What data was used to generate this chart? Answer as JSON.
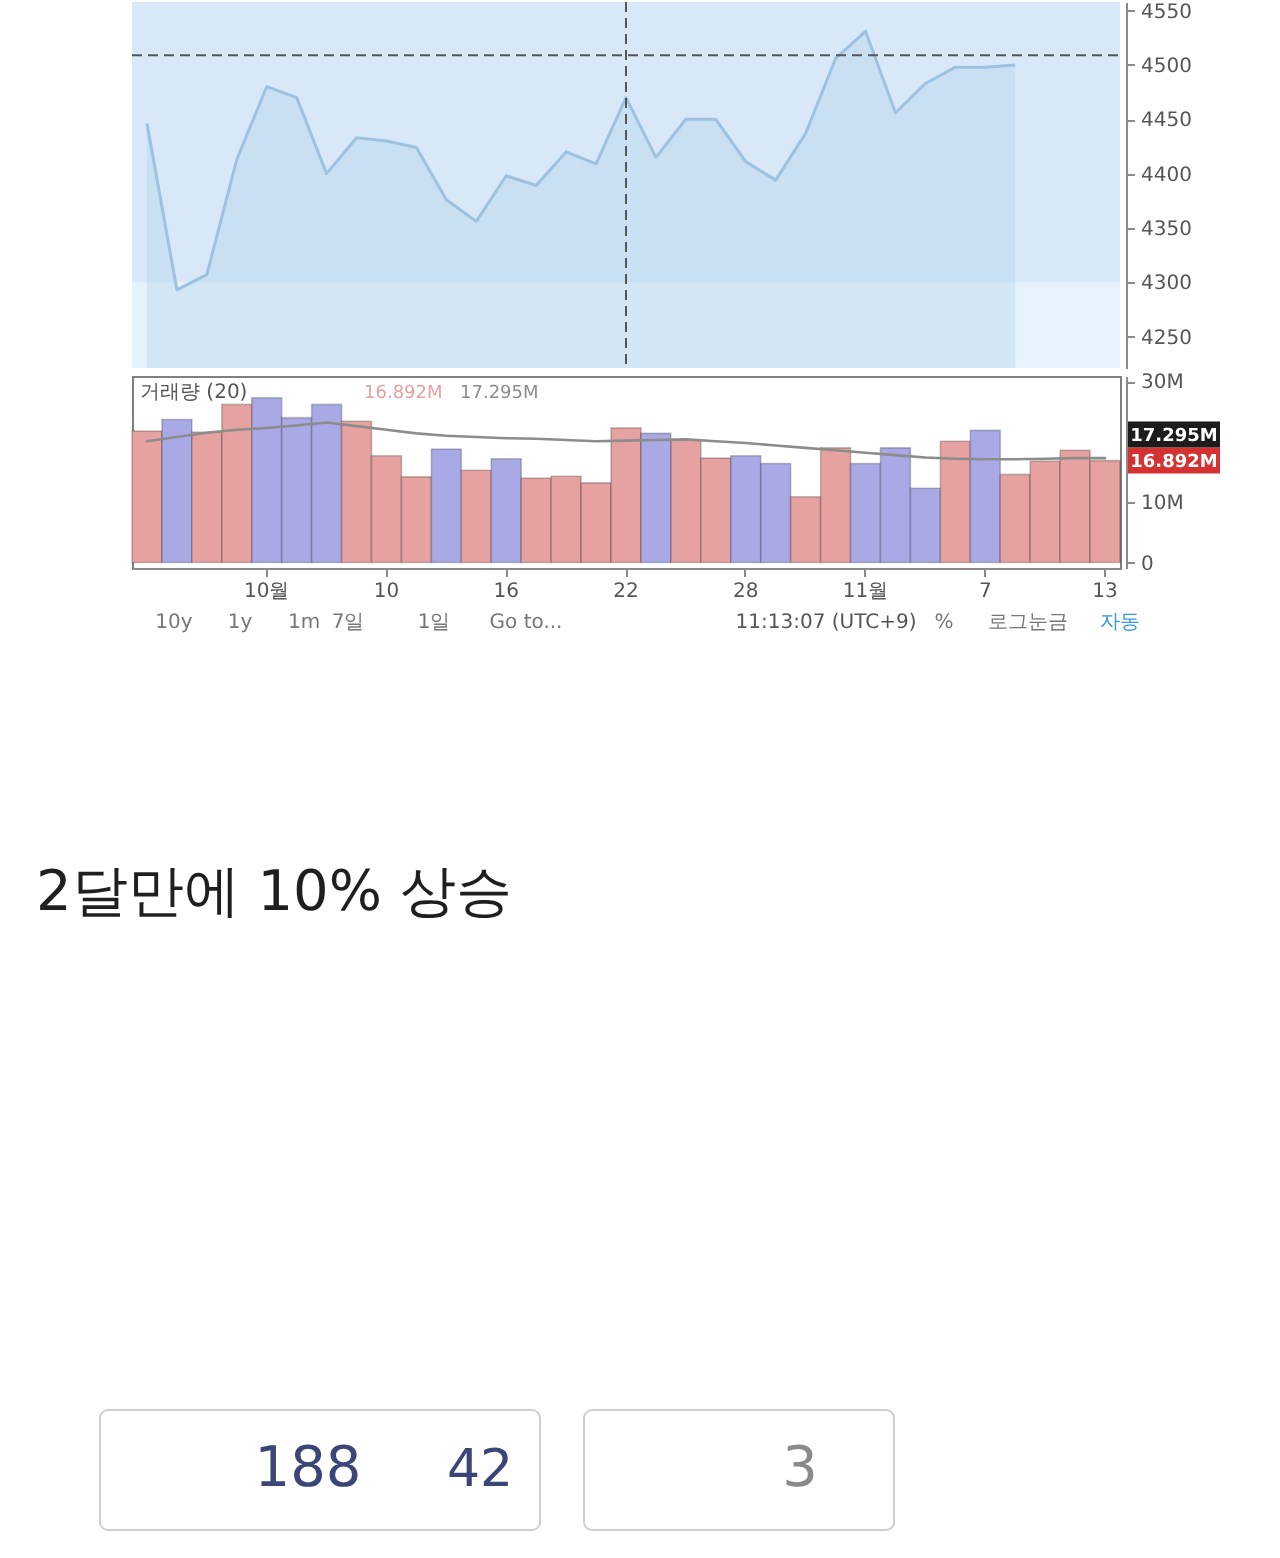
{
  "chart_data": [
    {
      "type": "area",
      "categories": [
        null,
        null,
        null,
        null,
        null,
        null,
        null,
        null,
        null,
        null,
        null,
        null,
        null,
        null,
        null,
        null,
        null,
        null,
        null,
        null,
        null,
        null,
        null,
        null,
        null,
        null,
        null,
        null,
        null,
        null
      ],
      "series": [
        {
          "color": "#9dc2e0",
          "values": [
            4446,
            4293,
            4307,
            4413,
            4480,
            4470,
            4400,
            4433,
            4430,
            4424,
            4376,
            4356,
            4398,
            4389,
            4420,
            4409,
            4470,
            4415,
            4450,
            4450,
            4411,
            4394,
            4437,
            4506,
            4531,
            4456,
            4483,
            4498,
            4498,
            4500
          ]
        }
      ],
      "ylim": [
        4221,
        4558
      ],
      "yticks": [
        4250,
        4300,
        4350,
        4400,
        4450,
        4500,
        4550
      ],
      "tick_labels": "y",
      "ref_lines": [
        {
          "axis": "y",
          "value": 4509,
          "line_style": "dashed"
        },
        {
          "axis": "x",
          "value": "22",
          "line_style": "dashed"
        }
      ],
      "bands": [
        {
          "axis": "y",
          "from": 4300,
          "to": 4558,
          "color": "#d9e8f9"
        }
      ]
    },
    {
      "type": "bar",
      "categories": [
        null,
        null,
        null,
        null,
        "10월",
        null,
        null,
        null,
        "10",
        null,
        null,
        null,
        "16",
        null,
        null,
        null,
        "22",
        null,
        null,
        null,
        "28",
        null,
        null,
        null,
        "11월",
        null,
        null,
        null,
        "7",
        null,
        null,
        null,
        "13"
      ],
      "legend": "top left",
      "legend_title": "거래량 (20)",
      "series": [
        {
          "name": "16.892M",
          "color": "#e6a1a1",
          "colors": [
            "#e6a1a1",
            "#a9a9e6",
            "#e6a1a1",
            "#e6a1a1",
            "#a9a9e6",
            "#a9a9e6",
            "#a9a9e6",
            "#e6a1a1",
            "#e6a1a1",
            "#e6a1a1",
            "#a9a9e6",
            "#e6a1a1",
            "#a9a9e6",
            "#e6a1a1",
            "#e6a1a1",
            "#e6a1a1",
            "#e6a1a1",
            "#a9a9e6",
            "#e6a1a1",
            "#e6a1a1",
            "#a9a9e6",
            "#a9a9e6",
            "#e6a1a1",
            "#e6a1a1",
            "#a9a9e6",
            "#a9a9e6",
            "#a9a9e6",
            "#e6a1a1",
            "#a9a9e6",
            "#e6a1a1",
            "#e6a1a1",
            "#e6a1a1",
            "#e6a1a1"
          ],
          "values": [
            21.8,
            23.7,
            21.6,
            26.2,
            27.3,
            24.0,
            26.2,
            23.4,
            17.7,
            14.2,
            18.8,
            15.3,
            17.2,
            14.0,
            14.3,
            13.2,
            22.3,
            21.4,
            20.3,
            17.3,
            17.7,
            16.4,
            10.9,
            19.0,
            16.4,
            19.0,
            12.3,
            20.1,
            21.9,
            14.6,
            16.8,
            18.6,
            16.892
          ]
        },
        {
          "type": "line",
          "name": "17.295M",
          "color": "#8c8c8c",
          "values": [
            20.1,
            20.8,
            21.5,
            22.0,
            22.3,
            22.7,
            23.2,
            22.6,
            22.0,
            21.4,
            21.0,
            20.8,
            20.6,
            20.5,
            20.3,
            20.1,
            20.2,
            20.3,
            20.4,
            20.1,
            19.8,
            19.4,
            19.0,
            18.6,
            18.2,
            17.8,
            17.4,
            17.2,
            17.1,
            17.1,
            17.2,
            17.3,
            17.295
          ]
        }
      ],
      "ylim": [
        -0.9,
        30.9
      ],
      "yticks": [
        0,
        {
          "value": 10,
          "label": "10M"
        },
        {
          "value": 30,
          "label": "30M"
        }
      ],
      "annotations": [
        "16.892M",
        "17.295M"
      ]
    },
    {
      "type": "other",
      "annotations": [
        "10y",
        "1y",
        "1m",
        "7일",
        "1일",
        "Go to...",
        "11:13:07 (UTC+9)",
        "%",
        "로그눈금",
        "자동"
      ]
    },
    {
      "type": "other",
      "title": "2달만에 10% 상승",
      "annotations": [
        "188",
        "42",
        "3"
      ]
    }
  ]
}
